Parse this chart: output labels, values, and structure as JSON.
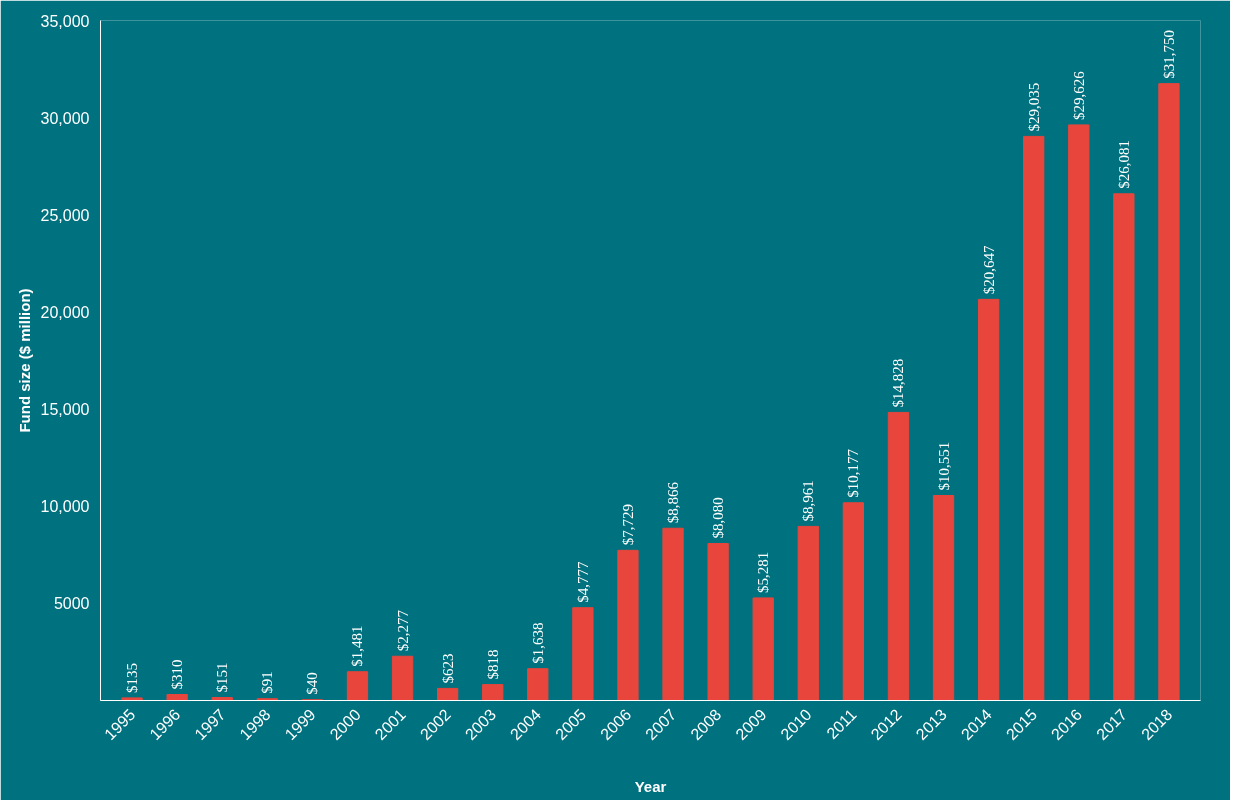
{
  "chart_data": {
    "type": "bar",
    "xlabel": "Year",
    "ylabel": "Fund size ($ million)",
    "categories": [
      "1995",
      "1996",
      "1997",
      "1998",
      "1999",
      "2000",
      "2001",
      "2002",
      "2003",
      "2004",
      "2005",
      "2006",
      "2007",
      "2008",
      "2009",
      "2010",
      "2011",
      "2012",
      "2013",
      "2014",
      "2015",
      "2016",
      "2017",
      "2018"
    ],
    "values": [
      135,
      310,
      151,
      91,
      40,
      1481,
      2277,
      623,
      818,
      1638,
      4777,
      7729,
      8866,
      8080,
      5281,
      8961,
      10177,
      14828,
      10551,
      20647,
      29035,
      29626,
      26081,
      31750
    ],
    "value_labels": [
      "$135",
      "$310",
      "$151",
      "$91",
      "$40",
      "$1,481",
      "$2,277",
      "$623",
      "$818",
      "$1,638",
      "$4,777",
      "$7,729",
      "$8,866",
      "$8,080",
      "$5,281",
      "$8,961",
      "$10,177",
      "$14,828",
      "$10,551",
      "$20,647",
      "$29,035",
      "$29,626",
      "$26,081",
      "$31,750"
    ],
    "color": "#e8463c",
    "ylim": [
      0,
      35000
    ],
    "yticks": [
      5000,
      {
        "value": 10000,
        "label": "10,000"
      },
      {
        "value": 15000,
        "label": "15,000"
      },
      {
        "value": 20000,
        "label": "20,000"
      },
      {
        "value": 25000,
        "label": "25,000"
      },
      {
        "value": 30000,
        "label": "30,000"
      },
      {
        "value": 35000,
        "label": "35,000"
      }
    ]
  }
}
